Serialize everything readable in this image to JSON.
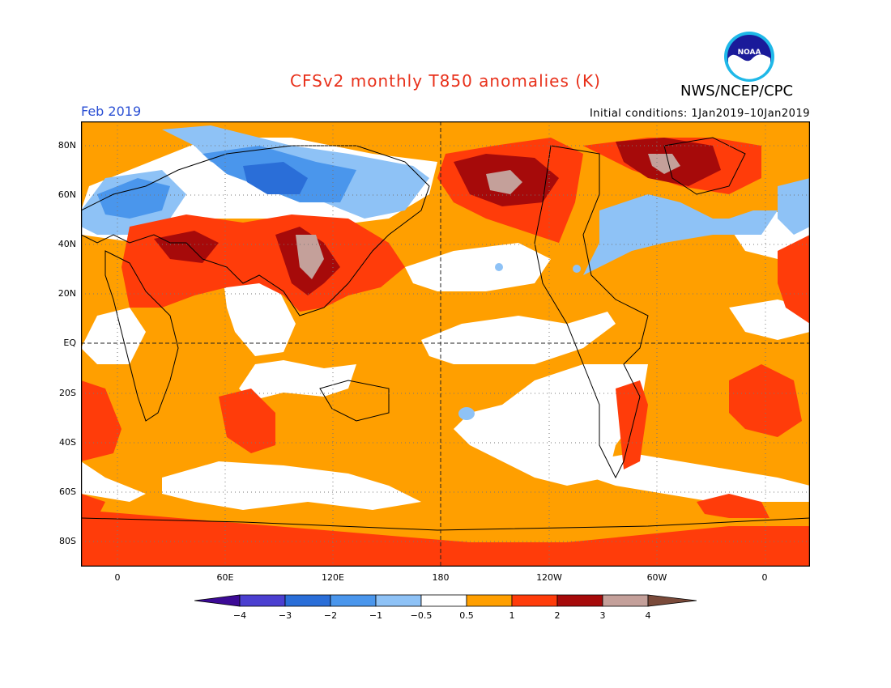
{
  "header": {
    "title": "CFSv2 monthly T850 anomalies (K)",
    "agency": "NWS/NCEP/CPC",
    "period": "Feb 2019",
    "initial_conditions": "Initial conditions: 1Jan2019–10Jan2019",
    "logo_text": "NOAA"
  },
  "map": {
    "lat_labels": [
      "80N",
      "60N",
      "40N",
      "20N",
      "EQ",
      "20S",
      "40S",
      "60S",
      "80S"
    ],
    "lon_labels": [
      "0",
      "60E",
      "120E",
      "180",
      "120W",
      "60W",
      "0"
    ]
  },
  "colorbar": {
    "tick_labels": [
      "−4",
      "−3",
      "−2",
      "−1",
      "−0.5",
      "0.5",
      "1",
      "2",
      "3",
      "4"
    ],
    "colors": [
      "#3c0a96",
      "#4b3fd0",
      "#2a6ed8",
      "#4a96ec",
      "#8ec2f6",
      "#ffffff",
      "#ff9f00",
      "#ff3c0a",
      "#a60a0a",
      "#c4a09a",
      "#7a4a3a"
    ]
  },
  "colors": {
    "title": "#e8301a",
    "period": "#2a4fd4"
  }
}
